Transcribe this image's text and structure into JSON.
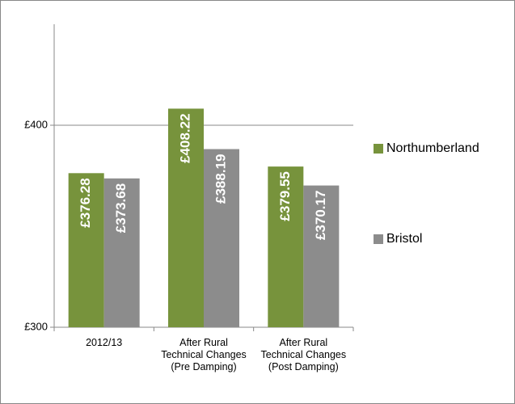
{
  "chart_data": {
    "type": "bar",
    "categories": [
      "2012/13",
      "After Rural Technical Changes (Pre Damping)",
      "After Rural Technical Changes (Post Damping)"
    ],
    "series": [
      {
        "name": "Northumberland",
        "color": "#77933c",
        "values": [
          376.28,
          408.22,
          379.55
        ],
        "value_labels": [
          "£376.28",
          "£408.22",
          "£379.55"
        ]
      },
      {
        "name": "Bristol",
        "color": "#8c8c8c",
        "values": [
          373.68,
          388.19,
          370.17
        ],
        "value_labels": [
          "£373.68",
          "£388.19",
          "£370.17"
        ]
      }
    ],
    "ylim": [
      300,
      450
    ],
    "yticks": [
      {
        "value": 300,
        "label": "£300"
      },
      {
        "value": 400,
        "label": "£400"
      }
    ],
    "grid": true,
    "legend": "right"
  }
}
